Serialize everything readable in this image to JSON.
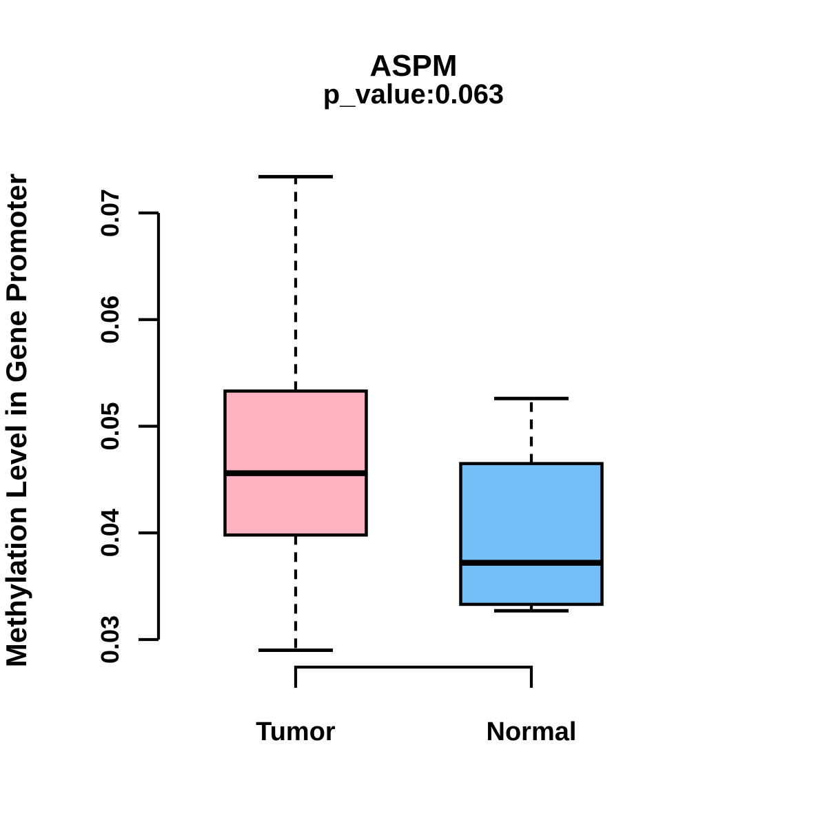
{
  "header": {
    "title": "ASPM",
    "subtitle": "p_value:0.063"
  },
  "y_axis": {
    "label": "Methylation Level in Gene Promoter",
    "tick_labels": [
      "0.03",
      "0.04",
      "0.05",
      "0.06",
      "0.07"
    ]
  },
  "x_axis": {
    "categories": [
      "Tumor",
      "Normal"
    ]
  },
  "colors": {
    "tumor_fill": "#FFB2C1",
    "normal_fill": "#74BFF7",
    "stroke": "#000000",
    "background": "#FFFFFF"
  },
  "chart_data": {
    "type": "boxplot",
    "title": "ASPM",
    "subtitle": "p_value:0.063",
    "ylabel": "Methylation Level in Gene Promoter",
    "xlabel": "",
    "categories": [
      "Tumor",
      "Normal"
    ],
    "yticks": [
      0.03,
      0.04,
      0.05,
      0.06,
      0.07
    ],
    "ylim": [
      0.029,
      0.0735
    ],
    "grid": false,
    "legend": "none",
    "series": [
      {
        "name": "Tumor",
        "color": "#FFB2C1",
        "whisker_low": 0.029,
        "q1": 0.0398,
        "median": 0.0456,
        "q3": 0.0533,
        "whisker_high": 0.0734,
        "outliers": []
      },
      {
        "name": "Normal",
        "color": "#74BFF7",
        "whisker_low": 0.0327,
        "q1": 0.0333,
        "median": 0.0372,
        "q3": 0.0465,
        "whisker_high": 0.0526,
        "outliers": []
      }
    ],
    "comparison_bracket": {
      "between": [
        "Tumor",
        "Normal"
      ],
      "label": ""
    }
  }
}
